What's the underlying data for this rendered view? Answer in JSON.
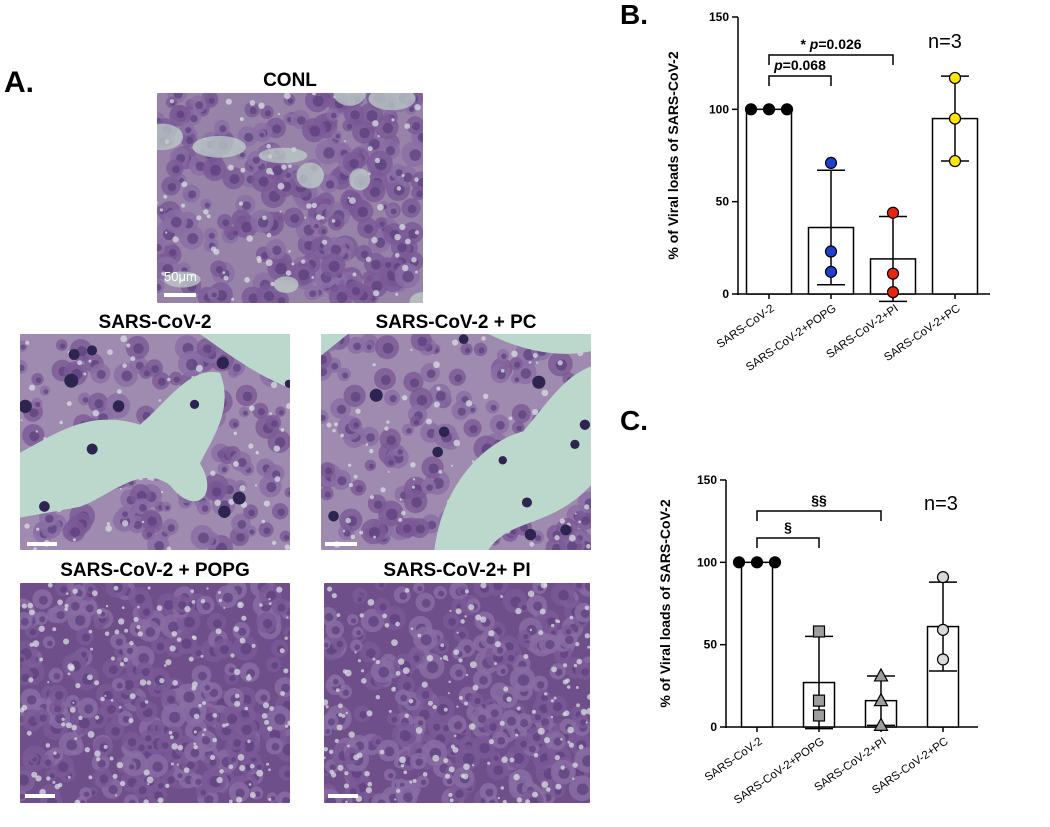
{
  "panel_a": {
    "letter": "A.",
    "images": [
      {
        "title": "CONL",
        "scale_label": "50μm",
        "kind": "dense-light"
      },
      {
        "title": "SARS-CoV-2",
        "kind": "gaps"
      },
      {
        "title": "SARS-CoV-2 + PC",
        "kind": "gaps-right"
      },
      {
        "title": "SARS-CoV-2 + POPG",
        "kind": "dense-dark"
      },
      {
        "title": "SARS-CoV-2+ PI",
        "kind": "dense-dark"
      }
    ]
  },
  "chart_data": [
    {
      "panel": "B.",
      "type": "bar",
      "categories": [
        "SARS-CoV-2",
        "SARS-CoV-2+POPG",
        "SARS-CoV-2+PI",
        "SARS-CoV-2+PC"
      ],
      "values": [
        100,
        36,
        19,
        95
      ],
      "errors": [
        0,
        31,
        23,
        23
      ],
      "points": [
        [
          100,
          100,
          100
        ],
        [
          71,
          23,
          12
        ],
        [
          44,
          11,
          1
        ],
        [
          117,
          95,
          72
        ]
      ],
      "point_colors": [
        "#000000",
        "#1f3fcf",
        "#e8260f",
        "#ffe600"
      ],
      "point_shapes": [
        "circle",
        "circle",
        "circle",
        "circle"
      ],
      "ylabel": "% of Viral loads of SARS-CoV-2",
      "ylim": [
        0,
        150
      ],
      "yticks": [
        "0",
        "50",
        "100",
        "150"
      ],
      "annotation": "n=3",
      "comparisons": [
        {
          "from": 0,
          "to": 1,
          "label_prefix": "",
          "label_p": "p",
          "label_rest": "=0.068"
        },
        {
          "from": 0,
          "to": 2,
          "label_prefix": "* ",
          "label_p": "p",
          "label_rest": "=0.026"
        }
      ]
    },
    {
      "panel": "C.",
      "type": "bar",
      "categories": [
        "SARS-CoV-2",
        "SARS-CoV-2+POPG",
        "SARS-CoV-2+PI",
        "SARS-CoV-2+PC"
      ],
      "values": [
        100,
        27,
        16,
        61
      ],
      "errors": [
        0,
        28,
        15,
        27
      ],
      "points": [
        [
          100,
          100,
          100
        ],
        [
          58,
          16,
          7
        ],
        [
          31,
          16,
          1
        ],
        [
          91,
          59,
          41
        ]
      ],
      "point_colors": [
        "#000000",
        "#9e9e9e",
        "#9e9e9e",
        "#d9d9d9"
      ],
      "point_shapes": [
        "circle",
        "square",
        "triangle",
        "circle"
      ],
      "ylabel": "% of Viral loads of SARS-CoV-2",
      "ylim": [
        0,
        150
      ],
      "yticks": [
        "0",
        "50",
        "100",
        "150"
      ],
      "annotation": "n=3",
      "comparisons": [
        {
          "from": 0,
          "to": 1,
          "label_prefix": "§",
          "label_p": "",
          "label_rest": ""
        },
        {
          "from": 0,
          "to": 2,
          "label_prefix": "§§",
          "label_p": "",
          "label_rest": ""
        }
      ]
    }
  ]
}
